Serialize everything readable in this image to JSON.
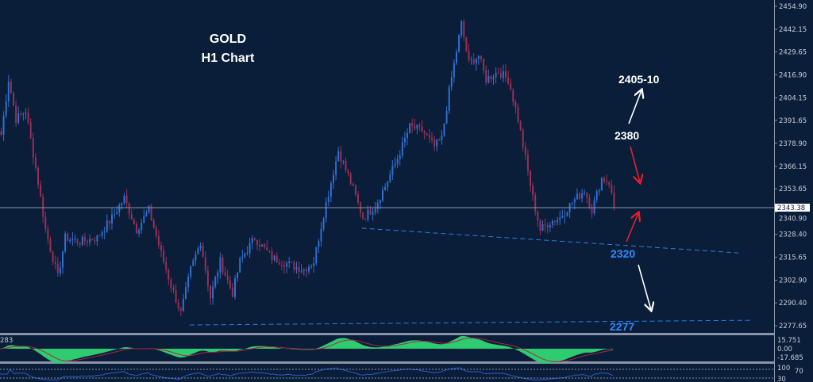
{
  "title": {
    "line1": "GOLD",
    "line2": "H1 Chart"
  },
  "annotations": {
    "target_up": "2405-10",
    "resistance": "2380",
    "support": "2320",
    "target_down": "2277"
  },
  "colors": {
    "background": "#0a1e3a",
    "bull_candle": "#2f6fd0",
    "bear_candle": "#9a2f52",
    "macd_histogram": "#2ecc71",
    "signal_line": "#b0243f",
    "rsi_line": "#2a5bd0",
    "trendline": "#2f7fe0",
    "arrow_white": "#ffffff",
    "arrow_red": "#e8202a",
    "support_label": "#2f8cff"
  },
  "chart_data": {
    "type": "candlestick",
    "symbol": "GOLD",
    "timeframe": "H1",
    "ylim": [
      2271,
      2458
    ],
    "y_ticks": [
      "2454.90",
      "2442.15",
      "2429.65",
      "2416.90",
      "2404.15",
      "2391.65",
      "2378.90",
      "2366.15",
      "2353.65",
      "2340.90",
      "2328.40",
      "2315.65",
      "2302.90",
      "2290.40",
      "2277.65"
    ],
    "current_price": "2343.38",
    "close_path": [
      [
        0,
        2383.7
      ],
      [
        3,
        2414.4
      ],
      [
        6,
        2392.5
      ],
      [
        10,
        2396.9
      ],
      [
        15,
        2357.3
      ],
      [
        18,
        2330.9
      ],
      [
        23,
        2304.5
      ],
      [
        26,
        2326.5
      ],
      [
        32,
        2324.3
      ],
      [
        39,
        2326.5
      ],
      [
        45,
        2337.5
      ],
      [
        50,
        2348.5
      ],
      [
        55,
        2330.9
      ],
      [
        60,
        2341.9
      ],
      [
        65,
        2317.7
      ],
      [
        69,
        2300.1
      ],
      [
        73,
        2284.7
      ],
      [
        77,
        2308.9
      ],
      [
        81,
        2324.3
      ],
      [
        85,
        2293.5
      ],
      [
        89,
        2313.3
      ],
      [
        94,
        2295.7
      ],
      [
        97,
        2313.3
      ],
      [
        103,
        2326.5
      ],
      [
        110,
        2315.5
      ],
      [
        118,
        2311.1
      ],
      [
        123,
        2308.9
      ],
      [
        127,
        2313.3
      ],
      [
        131,
        2339.7
      ],
      [
        134,
        2357.3
      ],
      [
        137,
        2374.9
      ],
      [
        142,
        2357.3
      ],
      [
        147,
        2337.5
      ],
      [
        152,
        2344.1
      ],
      [
        156,
        2355.1
      ],
      [
        161,
        2370.5
      ],
      [
        166,
        2388.1
      ],
      [
        171,
        2385.9
      ],
      [
        176,
        2377.1
      ],
      [
        179,
        2381.5
      ],
      [
        182,
        2407.8
      ],
      [
        187,
        2445.2
      ],
      [
        190,
        2423.2
      ],
      [
        194,
        2427.6
      ],
      [
        197,
        2414.4
      ],
      [
        202,
        2418.8
      ],
      [
        206,
        2414.4
      ],
      [
        210,
        2392.5
      ],
      [
        213,
        2370.5
      ],
      [
        216,
        2348.5
      ],
      [
        219,
        2330.9
      ],
      [
        223,
        2335.3
      ],
      [
        227,
        2337.5
      ],
      [
        232,
        2346.3
      ],
      [
        237,
        2352.9
      ],
      [
        240,
        2341.9
      ],
      [
        244,
        2359.5
      ],
      [
        247,
        2357.3
      ],
      [
        249,
        2343.4
      ]
    ],
    "trendlines": [
      {
        "from": [
          147,
          2331.8
        ],
        "to": [
          300,
          2318.1
        ],
        "style": "dashed"
      },
      {
        "from": [
          77,
          2278.1
        ],
        "to": [
          305,
          2280.7
        ],
        "style": "dashed"
      }
    ],
    "indicators": [
      {
        "type": "macd",
        "label": "283",
        "y_ticks": [
          "15.751",
          "0.00",
          "-17.685"
        ]
      },
      {
        "type": "rsi",
        "levels": [
          "100",
          "70",
          "30"
        ]
      }
    ]
  }
}
